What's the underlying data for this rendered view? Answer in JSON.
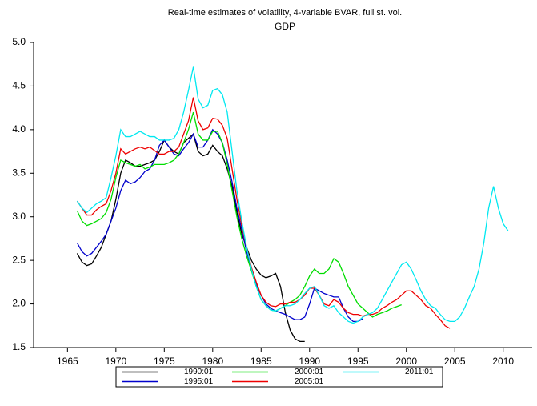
{
  "chart_data": {
    "type": "line",
    "title": "Real-time estimates of volatility, 4-variable BVAR, full st. vol.",
    "subtitle": "GDP",
    "x": [
      1966,
      1966.5,
      1967,
      1967.5,
      1968,
      1968.5,
      1969,
      1969.5,
      1970,
      1970.5,
      1971,
      1971.5,
      1972,
      1972.5,
      1973,
      1973.5,
      1974,
      1974.5,
      1975,
      1975.5,
      1976,
      1976.5,
      1977,
      1977.5,
      1978,
      1978.5,
      1979,
      1979.5,
      1980,
      1980.5,
      1981,
      1981.5,
      1982,
      1982.5,
      1983,
      1983.5,
      1984,
      1984.5,
      1985,
      1985.5,
      1986,
      1986.5,
      1987,
      1987.5,
      1988,
      1988.5,
      1989,
      1989.5,
      1990,
      1990.5,
      1991,
      1991.5,
      1992,
      1992.5,
      1993,
      1993.5,
      1994,
      1994.5,
      1995,
      1995.5,
      1996,
      1996.5,
      1997,
      1997.5,
      1998,
      1998.5,
      1999,
      1999.5,
      2000,
      2000.5,
      2001,
      2001.5,
      2002,
      2002.5,
      2003,
      2003.5,
      2004,
      2004.5,
      2005,
      2005.5,
      2006,
      2006.5,
      2007,
      2007.5,
      2008,
      2008.5,
      2009,
      2009.5,
      2010,
      2010.5
    ],
    "series": [
      {
        "name": "1990:01",
        "color": "#000000",
        "values": [
          2.58,
          2.48,
          2.44,
          2.46,
          2.55,
          2.65,
          2.8,
          2.95,
          3.2,
          3.5,
          3.65,
          3.62,
          3.58,
          3.58,
          3.6,
          3.62,
          3.65,
          3.75,
          3.88,
          3.8,
          3.75,
          3.72,
          3.85,
          3.9,
          3.95,
          3.75,
          3.7,
          3.72,
          3.82,
          3.75,
          3.7,
          3.55,
          3.35,
          3.05,
          2.8,
          2.65,
          2.5,
          2.4,
          2.33,
          2.3,
          2.32,
          2.35,
          2.2,
          1.9,
          1.7,
          1.6,
          1.57,
          1.57,
          null,
          null,
          null,
          null,
          null,
          null,
          null,
          null,
          null,
          null,
          null,
          null,
          null,
          null,
          null,
          null,
          null,
          null,
          null,
          null,
          null,
          null,
          null,
          null,
          null,
          null,
          null,
          null,
          null,
          null,
          null,
          null,
          null,
          null,
          null,
          null,
          null,
          null,
          null,
          null,
          null,
          null
        ]
      },
      {
        "name": "1995:01",
        "color": "#0000cc",
        "values": [
          2.7,
          2.6,
          2.55,
          2.58,
          2.65,
          2.72,
          2.8,
          2.95,
          3.1,
          3.3,
          3.42,
          3.38,
          3.4,
          3.45,
          3.52,
          3.55,
          3.65,
          3.82,
          3.88,
          3.8,
          3.72,
          3.7,
          3.78,
          3.85,
          3.95,
          3.8,
          3.8,
          3.88,
          4.0,
          3.95,
          3.85,
          3.65,
          3.4,
          3.1,
          2.85,
          2.6,
          2.4,
          2.22,
          2.1,
          2.0,
          1.95,
          1.92,
          1.9,
          1.88,
          1.85,
          1.82,
          1.82,
          1.85,
          2.0,
          2.18,
          2.15,
          2.12,
          2.1,
          2.08,
          2.08,
          1.95,
          1.85,
          1.8,
          1.8,
          1.83,
          null,
          null,
          null,
          null,
          null,
          null,
          null,
          null,
          null,
          null,
          null,
          null,
          null,
          null,
          null,
          null,
          null,
          null,
          null,
          null,
          null,
          null,
          null,
          null,
          null,
          null,
          null,
          null,
          null,
          null
        ]
      },
      {
        "name": "2000:01",
        "color": "#00dd00",
        "values": [
          3.07,
          2.95,
          2.9,
          2.92,
          2.95,
          2.98,
          3.05,
          3.2,
          3.45,
          3.65,
          3.62,
          3.6,
          3.58,
          3.6,
          3.55,
          3.57,
          3.6,
          3.6,
          3.6,
          3.62,
          3.65,
          3.72,
          3.85,
          4.0,
          4.2,
          3.95,
          3.88,
          3.88,
          3.98,
          3.98,
          3.85,
          3.6,
          3.3,
          3.0,
          2.75,
          2.55,
          2.38,
          2.2,
          2.05,
          1.98,
          1.93,
          1.92,
          1.95,
          1.98,
          2.02,
          2.05,
          2.1,
          2.2,
          2.32,
          2.4,
          2.35,
          2.35,
          2.4,
          2.52,
          2.48,
          2.35,
          2.2,
          2.1,
          2.0,
          1.95,
          1.9,
          1.85,
          1.88,
          1.9,
          1.92,
          1.95,
          1.97,
          1.99,
          null,
          null,
          null,
          null,
          null,
          null,
          null,
          null,
          null,
          null,
          null,
          null,
          null,
          null,
          null,
          null,
          null,
          null,
          null,
          null,
          null,
          null
        ]
      },
      {
        "name": "2005:01",
        "color": "#ee0000",
        "values": [
          3.18,
          3.1,
          3.02,
          3.02,
          3.08,
          3.12,
          3.15,
          3.3,
          3.5,
          3.78,
          3.72,
          3.75,
          3.78,
          3.8,
          3.78,
          3.8,
          3.76,
          3.72,
          3.72,
          3.75,
          3.75,
          3.8,
          3.95,
          4.1,
          4.37,
          4.1,
          4.0,
          4.02,
          4.13,
          4.12,
          4.05,
          3.9,
          3.55,
          3.2,
          2.9,
          2.65,
          2.42,
          2.25,
          2.1,
          2.02,
          1.98,
          1.97,
          2.0,
          2.0,
          2.02,
          2.02,
          2.05,
          2.1,
          2.18,
          2.18,
          2.1,
          2.0,
          1.98,
          2.05,
          2.02,
          1.95,
          1.9,
          1.88,
          1.88,
          1.86,
          1.88,
          1.88,
          1.9,
          1.95,
          1.98,
          2.02,
          2.05,
          2.1,
          2.15,
          2.15,
          2.1,
          2.05,
          1.98,
          1.95,
          1.88,
          1.82,
          1.75,
          1.72,
          null,
          null,
          null,
          null,
          null,
          null,
          null,
          null,
          null,
          null,
          null,
          null
        ]
      },
      {
        "name": "2011:01",
        "color": "#00e8f0",
        "values": [
          3.18,
          3.1,
          3.05,
          3.1,
          3.15,
          3.18,
          3.22,
          3.45,
          3.7,
          4.0,
          3.92,
          3.92,
          3.95,
          3.98,
          3.95,
          3.92,
          3.92,
          3.88,
          3.88,
          3.88,
          3.9,
          4.0,
          4.2,
          4.45,
          4.72,
          4.35,
          4.25,
          4.28,
          4.45,
          4.47,
          4.4,
          4.2,
          3.75,
          3.3,
          2.95,
          2.65,
          2.4,
          2.2,
          2.05,
          1.98,
          1.93,
          1.92,
          1.95,
          1.98,
          1.98,
          2.0,
          2.05,
          2.12,
          2.18,
          2.2,
          2.1,
          1.98,
          1.95,
          1.98,
          1.9,
          1.85,
          1.8,
          1.78,
          1.8,
          1.85,
          1.88,
          1.9,
          1.95,
          2.05,
          2.15,
          2.25,
          2.35,
          2.45,
          2.48,
          2.4,
          2.28,
          2.15,
          2.05,
          1.98,
          1.95,
          1.88,
          1.82,
          1.8,
          1.8,
          1.85,
          1.95,
          2.08,
          2.2,
          2.4,
          2.7,
          3.1,
          3.35,
          3.1,
          2.92,
          2.84
        ]
      }
    ],
    "xlim": [
      1961.5,
      2013
    ],
    "xticks": [
      1965,
      1970,
      1975,
      1980,
      1985,
      1990,
      1995,
      2000,
      2005,
      2010
    ],
    "ylim": [
      1.5,
      5.0
    ],
    "yticks": [
      {
        "value": 1.5,
        "label": "1.5"
      },
      {
        "value": 2.0,
        "label": "2.0"
      },
      {
        "value": 2.5,
        "label": "2.5"
      },
      {
        "value": 3.0,
        "label": "3.0"
      },
      {
        "value": 3.5,
        "label": "3.5"
      },
      {
        "value": 4.0,
        "label": "4.0"
      },
      {
        "value": 4.5,
        "label": "4.5"
      },
      {
        "value": 5.0,
        "label": "5.0"
      }
    ],
    "grid": false,
    "legend": "bottom"
  }
}
